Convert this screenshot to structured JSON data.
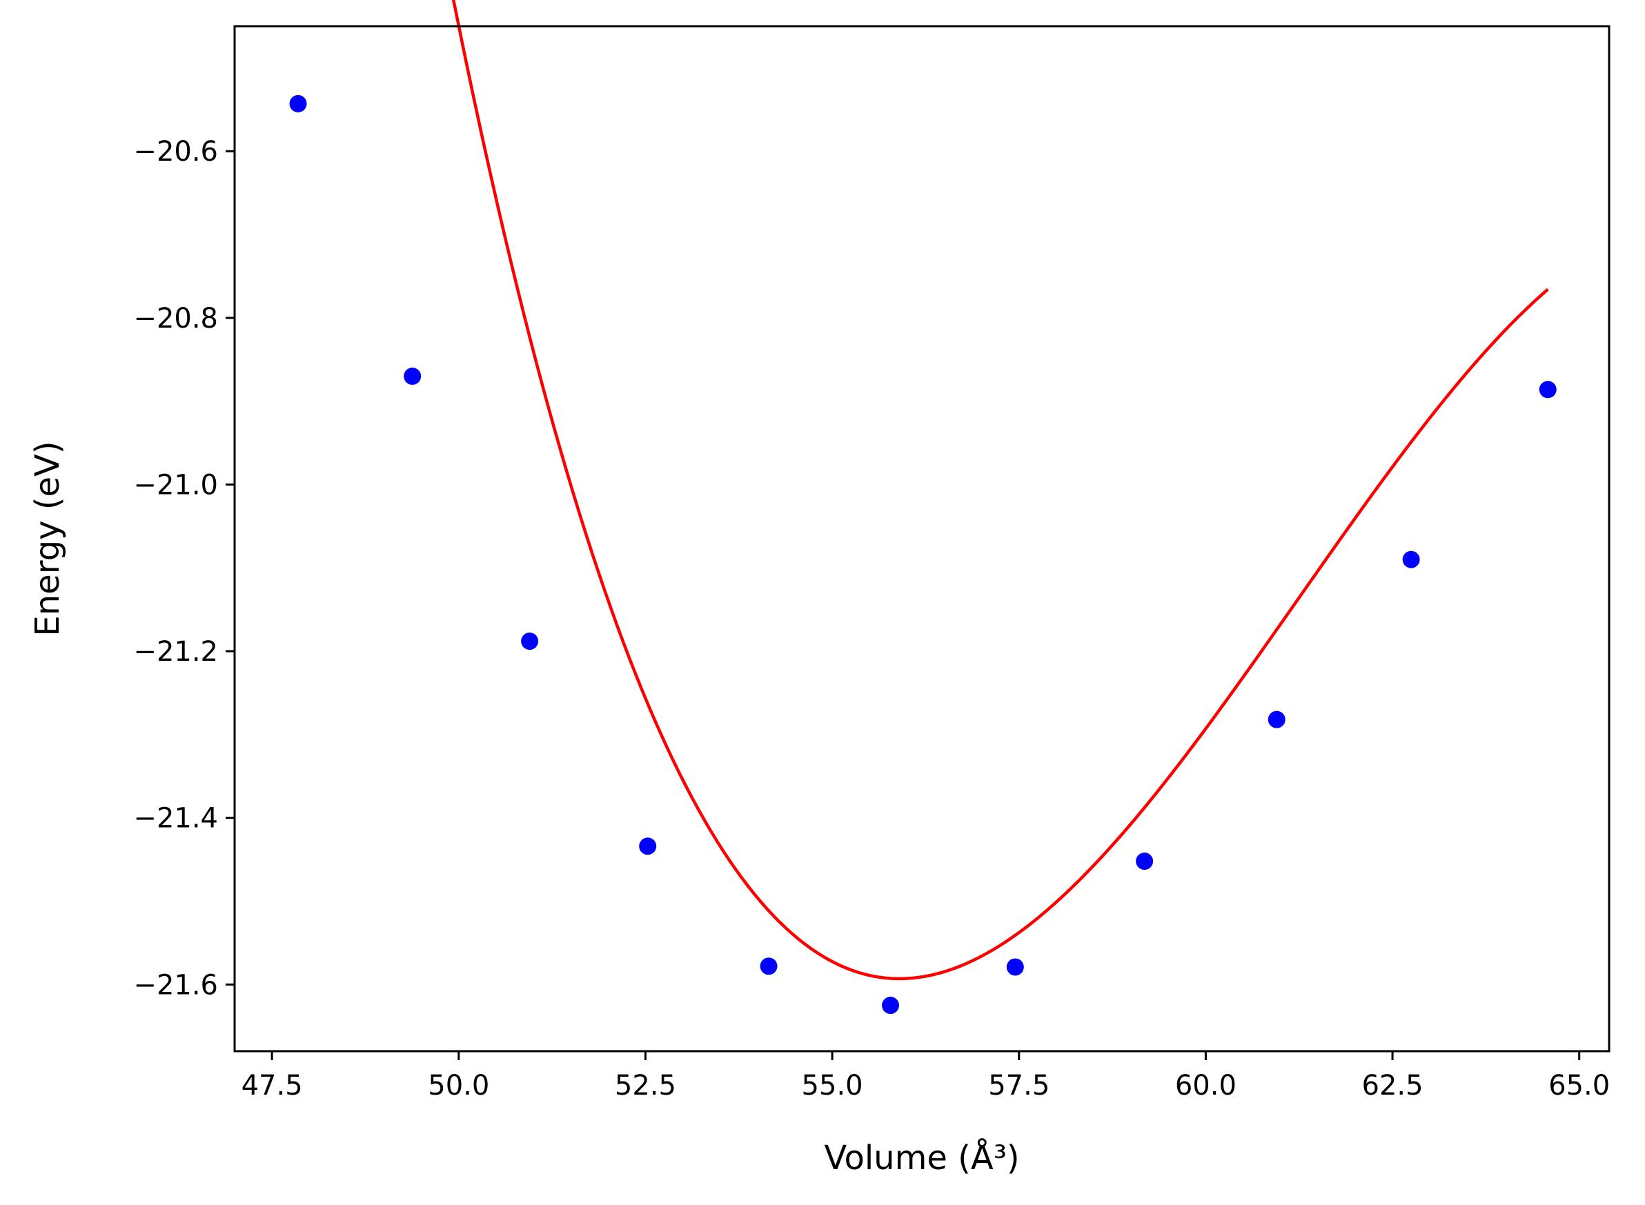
{
  "chart_data": {
    "type": "scatter",
    "title": "",
    "xlabel": "Volume (Å³)",
    "ylabel": "Energy (eV)",
    "xlim": [
      47.0,
      65.4
    ],
    "ylim": [
      -21.68,
      -20.45
    ],
    "grid": false,
    "legend": "none",
    "xticks": [
      47.5,
      50.0,
      52.5,
      55.0,
      57.5,
      60.0,
      62.5,
      65.0
    ],
    "xtick_labels": [
      "47.5",
      "50.0",
      "52.5",
      "55.0",
      "57.5",
      "60.0",
      "62.5",
      "65.0"
    ],
    "yticks": [
      -20.6,
      -20.8,
      -21.0,
      -21.2,
      -21.4,
      -21.6
    ],
    "ytick_labels": [
      "−20.6",
      "−20.8",
      "−21.0",
      "−21.2",
      "−21.4",
      "−21.6"
    ],
    "series": [
      {
        "type": "scatter",
        "color": "#0000ff",
        "x": [
          47.85,
          49.38,
          50.95,
          52.53,
          54.15,
          55.78,
          57.45,
          59.18,
          60.95,
          62.75,
          64.58
        ],
        "y": [
          -20.543,
          -20.87,
          -21.188,
          -21.434,
          -21.578,
          -21.625,
          -21.579,
          -21.452,
          -21.282,
          -21.09,
          -20.886
        ]
      },
      {
        "type": "line",
        "color": "#ff0000",
        "x_range": [
          47.85,
          64.58
        ],
        "fit": {
          "min_x": 55.9,
          "min_y": -21.593,
          "a": 0.024,
          "b": -0.0015
        }
      }
    ]
  }
}
